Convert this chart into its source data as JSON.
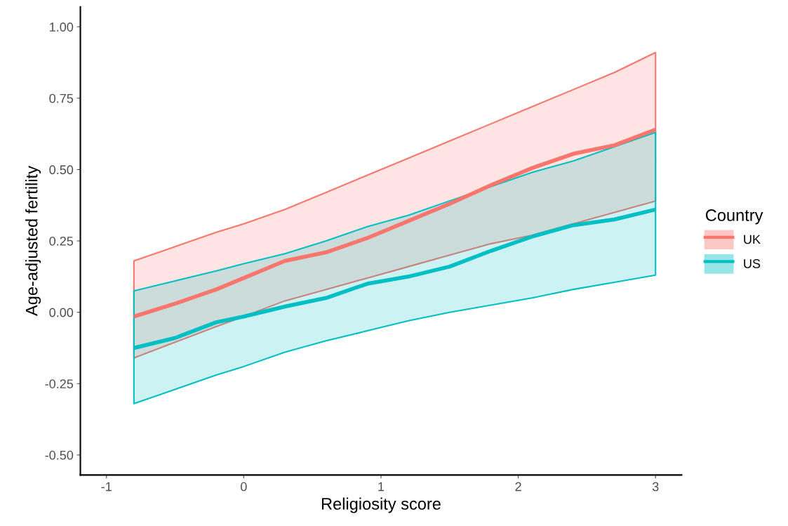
{
  "chart_data": {
    "type": "line",
    "xlabel": "Religiosity score",
    "ylabel": "Age-adjusted fertility",
    "legend_title": "Country",
    "legend": "right",
    "grid": false,
    "marker": "none",
    "line_style": "solid",
    "xlim": [
      -1.19,
      3.19
    ],
    "ylim": [
      -0.57,
      1.07
    ],
    "xticks": [
      -1,
      0,
      1,
      2,
      3
    ],
    "yticks": [
      {
        "value": -0.5,
        "label": "-0.50"
      },
      {
        "value": -0.25,
        "label": "-0.25"
      },
      {
        "value": 0,
        "label": "0.00"
      },
      {
        "value": 0.25,
        "label": "0.25"
      },
      {
        "value": 0.5,
        "label": "0.50"
      },
      {
        "value": 0.75,
        "label": "0.75"
      },
      {
        "value": 1.0,
        "label": "1.00"
      }
    ],
    "x": [
      -0.8,
      -0.5,
      -0.2,
      0,
      0.3,
      0.6,
      0.9,
      1.2,
      1.5,
      1.8,
      2.1,
      2.4,
      2.7,
      3.0
    ],
    "series": [
      {
        "name": "UK",
        "color": "#f8766d",
        "values": [
          -0.015,
          0.03,
          0.08,
          0.12,
          0.18,
          0.21,
          0.26,
          0.32,
          0.38,
          0.445,
          0.505,
          0.555,
          0.585,
          0.64
        ],
        "lower": [
          -0.16,
          -0.105,
          -0.05,
          -0.015,
          0.04,
          0.08,
          0.12,
          0.16,
          0.2,
          0.24,
          0.27,
          0.31,
          0.35,
          0.39
        ],
        "upper": [
          0.18,
          0.23,
          0.28,
          0.31,
          0.36,
          0.42,
          0.48,
          0.54,
          0.6,
          0.66,
          0.72,
          0.78,
          0.84,
          0.91
        ]
      },
      {
        "name": "US",
        "color": "#00bfc4",
        "values": [
          -0.125,
          -0.09,
          -0.035,
          -0.015,
          0.02,
          0.05,
          0.1,
          0.125,
          0.16,
          0.215,
          0.265,
          0.305,
          0.325,
          0.36
        ],
        "lower": [
          -0.32,
          -0.27,
          -0.22,
          -0.19,
          -0.14,
          -0.1,
          -0.065,
          -0.03,
          0.0,
          0.025,
          0.05,
          0.08,
          0.105,
          0.13
        ],
        "upper": [
          0.075,
          0.11,
          0.145,
          0.17,
          0.205,
          0.25,
          0.3,
          0.34,
          0.39,
          0.44,
          0.49,
          0.53,
          0.58,
          0.63
        ]
      }
    ]
  }
}
